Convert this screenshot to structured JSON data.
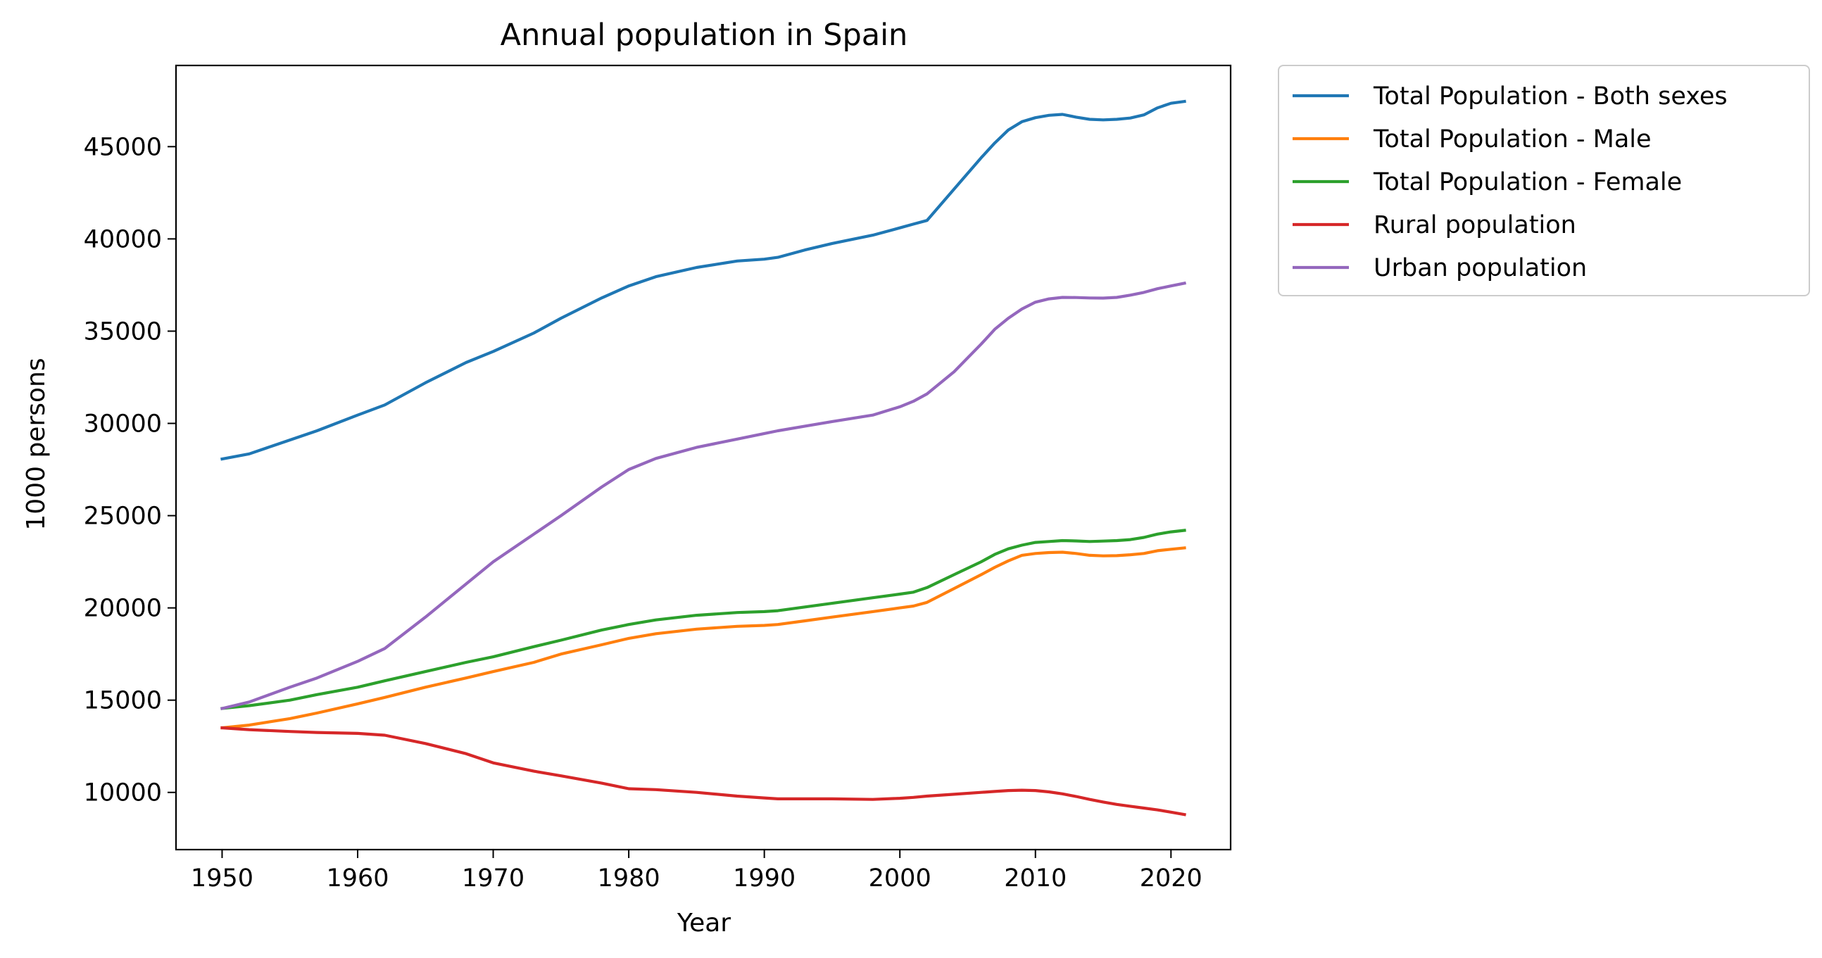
{
  "chart_data": {
    "type": "line",
    "title": "Annual population in Spain",
    "xlabel": "Year",
    "ylabel": "1000 persons",
    "xlim": [
      1946.6,
      2024.4
    ],
    "ylim": [
      6900,
      49400
    ],
    "xticks": [
      1950,
      1960,
      1970,
      1980,
      1990,
      2000,
      2010,
      2020
    ],
    "yticks": [
      10000,
      15000,
      20000,
      25000,
      30000,
      35000,
      40000,
      45000
    ],
    "grid": false,
    "legend_position": "outside-top-right",
    "x": [
      1950,
      1952,
      1955,
      1957,
      1960,
      1962,
      1965,
      1968,
      1970,
      1973,
      1975,
      1978,
      1980,
      1982,
      1985,
      1988,
      1990,
      1991,
      1993,
      1995,
      1998,
      2000,
      2001,
      2002,
      2004,
      2006,
      2007,
      2008,
      2009,
      2010,
      2011,
      2012,
      2013,
      2014,
      2015,
      2016,
      2017,
      2018,
      2019,
      2020,
      2021
    ],
    "series": [
      {
        "name": "Total Population - Both sexes",
        "color": "#1f77b4",
        "values": [
          28070,
          28350,
          29100,
          29600,
          30450,
          31000,
          32200,
          33300,
          33900,
          34900,
          35700,
          36800,
          37450,
          37950,
          38450,
          38800,
          38900,
          39000,
          39400,
          39750,
          40200,
          40600,
          40800,
          41000,
          42700,
          44400,
          45200,
          45900,
          46350,
          46570,
          46700,
          46750,
          46600,
          46480,
          46450,
          46480,
          46550,
          46720,
          47100,
          47350,
          47450
        ]
      },
      {
        "name": "Total Population - Male",
        "color": "#ff7f0e",
        "values": [
          13500,
          13650,
          14000,
          14300,
          14800,
          15150,
          15700,
          16200,
          16550,
          17050,
          17500,
          18000,
          18350,
          18600,
          18850,
          19000,
          19050,
          19100,
          19300,
          19500,
          19800,
          20000,
          20100,
          20300,
          21050,
          21800,
          22200,
          22550,
          22850,
          22950,
          23000,
          23020,
          22950,
          22850,
          22820,
          22830,
          22880,
          22950,
          23100,
          23180,
          23250
        ]
      },
      {
        "name": "Total Population - Female",
        "color": "#2ca02c",
        "values": [
          14550,
          14700,
          15000,
          15300,
          15700,
          16050,
          16550,
          17050,
          17350,
          17900,
          18250,
          18800,
          19100,
          19350,
          19600,
          19750,
          19800,
          19850,
          20050,
          20250,
          20550,
          20750,
          20850,
          21100,
          21800,
          22500,
          22900,
          23200,
          23400,
          23550,
          23600,
          23650,
          23630,
          23600,
          23620,
          23650,
          23700,
          23820,
          24000,
          24120,
          24200
        ]
      },
      {
        "name": "Rural population",
        "color": "#d62728",
        "values": [
          13500,
          13400,
          13300,
          13250,
          13200,
          13100,
          12650,
          12100,
          11600,
          11150,
          10900,
          10500,
          10200,
          10150,
          10000,
          9800,
          9700,
          9650,
          9650,
          9650,
          9620,
          9680,
          9730,
          9800,
          9900,
          10000,
          10050,
          10100,
          10120,
          10100,
          10030,
          9920,
          9780,
          9620,
          9480,
          9350,
          9250,
          9150,
          9050,
          8930,
          8800
        ]
      },
      {
        "name": "Urban population",
        "color": "#9467bd",
        "values": [
          14550,
          14900,
          15700,
          16200,
          17100,
          17800,
          19500,
          21300,
          22500,
          24000,
          25000,
          26550,
          27500,
          28100,
          28700,
          29150,
          29450,
          29600,
          29850,
          30100,
          30450,
          30900,
          31200,
          31600,
          32800,
          34300,
          35100,
          35700,
          36200,
          36570,
          36750,
          36830,
          36820,
          36800,
          36790,
          36830,
          36950,
          37100,
          37300,
          37450,
          37600
        ]
      }
    ]
  }
}
